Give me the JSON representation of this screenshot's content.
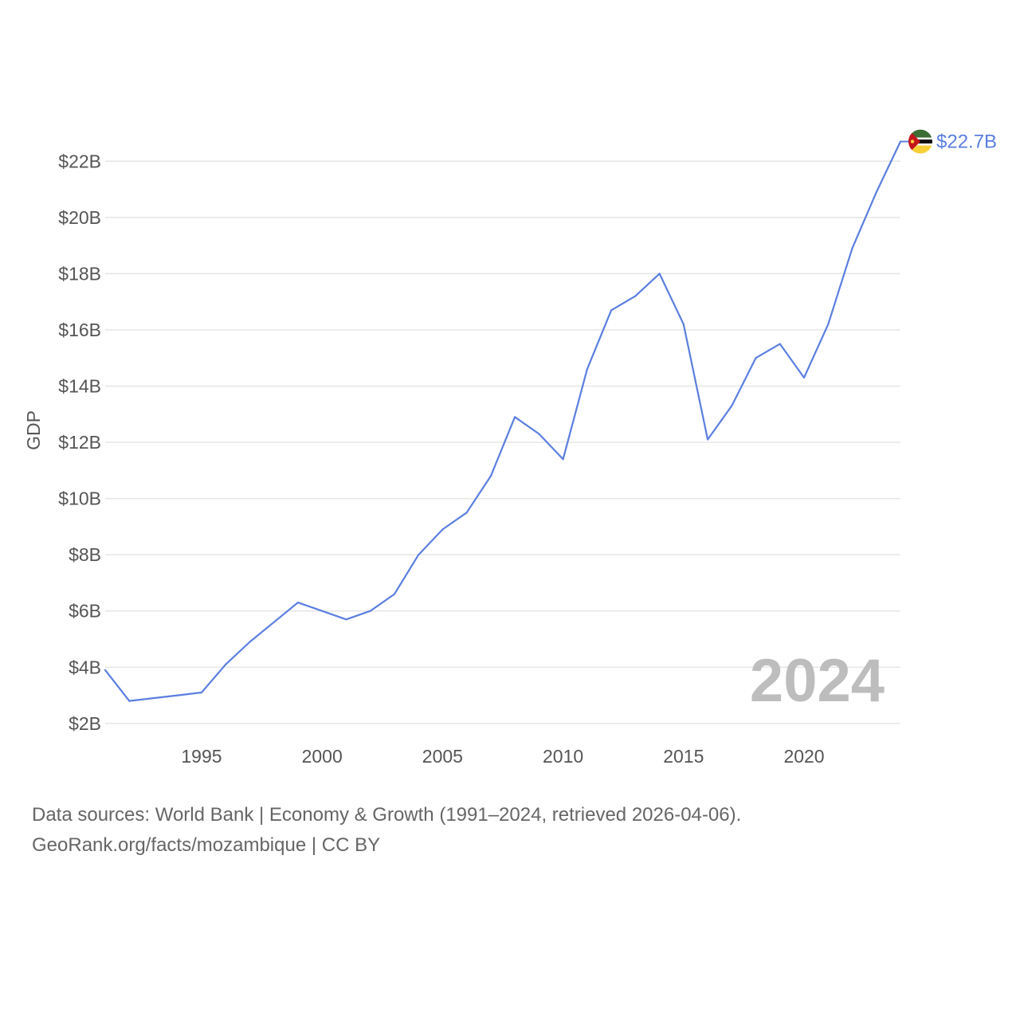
{
  "chart_data": {
    "type": "line",
    "title": "",
    "xlabel": "",
    "ylabel": "GDP",
    "x": [
      1991,
      1992,
      1993,
      1994,
      1995,
      1996,
      1997,
      1998,
      1999,
      2000,
      2001,
      2002,
      2003,
      2004,
      2005,
      2006,
      2007,
      2008,
      2009,
      2010,
      2011,
      2012,
      2013,
      2014,
      2015,
      2016,
      2017,
      2018,
      2019,
      2020,
      2021,
      2022,
      2023,
      2024
    ],
    "series": [
      {
        "name": "Mozambique",
        "values": [
          3.9,
          2.8,
          2.9,
          3.0,
          3.1,
          4.1,
          4.9,
          5.6,
          6.3,
          6.0,
          5.7,
          6.0,
          6.6,
          8.0,
          8.9,
          9.5,
          10.8,
          12.9,
          12.3,
          11.4,
          14.6,
          16.7,
          17.2,
          18.0,
          16.2,
          12.1,
          13.3,
          15.0,
          15.5,
          14.3,
          16.2,
          18.9,
          20.9,
          22.7
        ],
        "color": "#5b7fe0"
      }
    ],
    "xlim": [
      1991,
      2024
    ],
    "ylim": [
      1.4,
      23
    ],
    "xticks": [
      1995,
      2000,
      2005,
      2010,
      2015,
      2020
    ],
    "xtick_labels": [
      "1995",
      "2000",
      "2005",
      "2010",
      "2015",
      "2020"
    ],
    "yticks": [
      2,
      4,
      6,
      8,
      10,
      12,
      14,
      16,
      18,
      20,
      22
    ],
    "ytick_labels": [
      "$2B",
      "$4B",
      "$6B",
      "$8B",
      "$10B",
      "$12B",
      "$14B",
      "$16B",
      "$18B",
      "$20B",
      "$22B"
    ],
    "grid": true,
    "current_year_label": "2024",
    "end_value_label": "$22.7B"
  },
  "footer": {
    "line1": "Data sources: World Bank | Economy & Growth (1991–2024, retrieved 2026-04-06).",
    "line2": "GeoRank.org/facts/mozambique | CC BY"
  },
  "colors": {
    "line": "#5b7fe0",
    "grid": "#e6e6e6",
    "watermark": "#bdbdbd",
    "flag_green": "#3c6d34",
    "flag_black": "#111111",
    "flag_white": "#ffffff",
    "flag_yellow": "#f7d038",
    "flag_red": "#c4161c"
  }
}
